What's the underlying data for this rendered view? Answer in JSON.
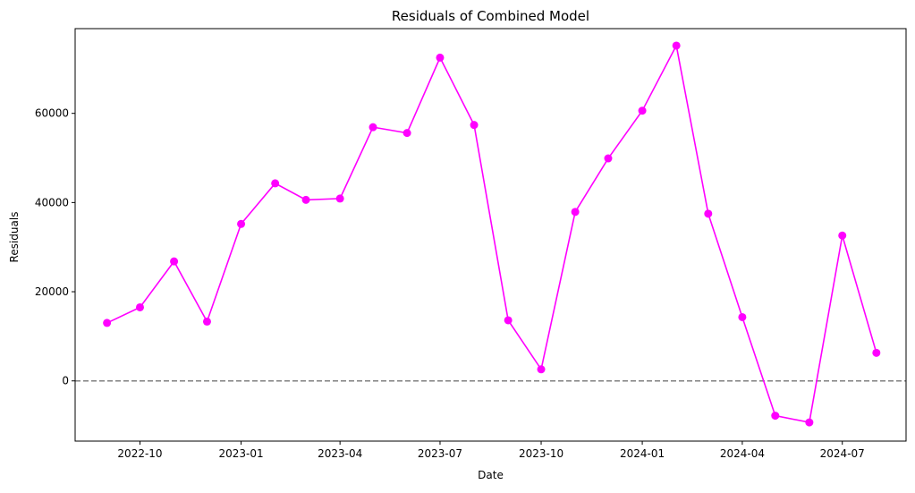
{
  "chart_data": {
    "type": "line",
    "title": "Residuals of Combined Model",
    "xlabel": "Date",
    "ylabel": "Residuals",
    "x_is_date": true,
    "xlim": [
      "2022-08-03",
      "2024-08-28"
    ],
    "ylim": [
      -13500,
      79000
    ],
    "x_ticks": [
      {
        "date": "2022-10-01",
        "label": "2022-10"
      },
      {
        "date": "2023-01-01",
        "label": "2023-01"
      },
      {
        "date": "2023-04-01",
        "label": "2023-04"
      },
      {
        "date": "2023-07-01",
        "label": "2023-07"
      },
      {
        "date": "2023-10-01",
        "label": "2023-10"
      },
      {
        "date": "2024-01-01",
        "label": "2024-01"
      },
      {
        "date": "2024-04-01",
        "label": "2024-04"
      },
      {
        "date": "2024-07-01",
        "label": "2024-07"
      }
    ],
    "y_ticks": [
      {
        "value": 0,
        "label": "0"
      },
      {
        "value": 20000,
        "label": "20000"
      },
      {
        "value": 40000,
        "label": "40000"
      },
      {
        "value": 60000,
        "label": "60000"
      }
    ],
    "reference_line": {
      "y": 0,
      "style": "dashed",
      "color": "#808080"
    },
    "grid": false,
    "series": [
      {
        "color": "#ff00ff",
        "marker": "circle",
        "x": [
          "2022-09-01",
          "2022-10-01",
          "2022-11-01",
          "2022-12-01",
          "2023-01-01",
          "2023-02-01",
          "2023-03-01",
          "2023-04-01",
          "2023-05-01",
          "2023-06-01",
          "2023-07-01",
          "2023-08-01",
          "2023-09-01",
          "2023-10-01",
          "2023-11-01",
          "2023-12-01",
          "2024-01-01",
          "2024-02-01",
          "2024-03-01",
          "2024-04-01",
          "2024-05-01",
          "2024-06-01",
          "2024-07-01",
          "2024-08-01"
        ],
        "y": [
          13000,
          16500,
          26800,
          13300,
          35200,
          44300,
          40600,
          40900,
          56900,
          55600,
          72500,
          57400,
          13600,
          2600,
          37900,
          49900,
          60600,
          75200,
          37500,
          14300,
          -7800,
          -9300,
          32600,
          6300
        ]
      }
    ]
  }
}
